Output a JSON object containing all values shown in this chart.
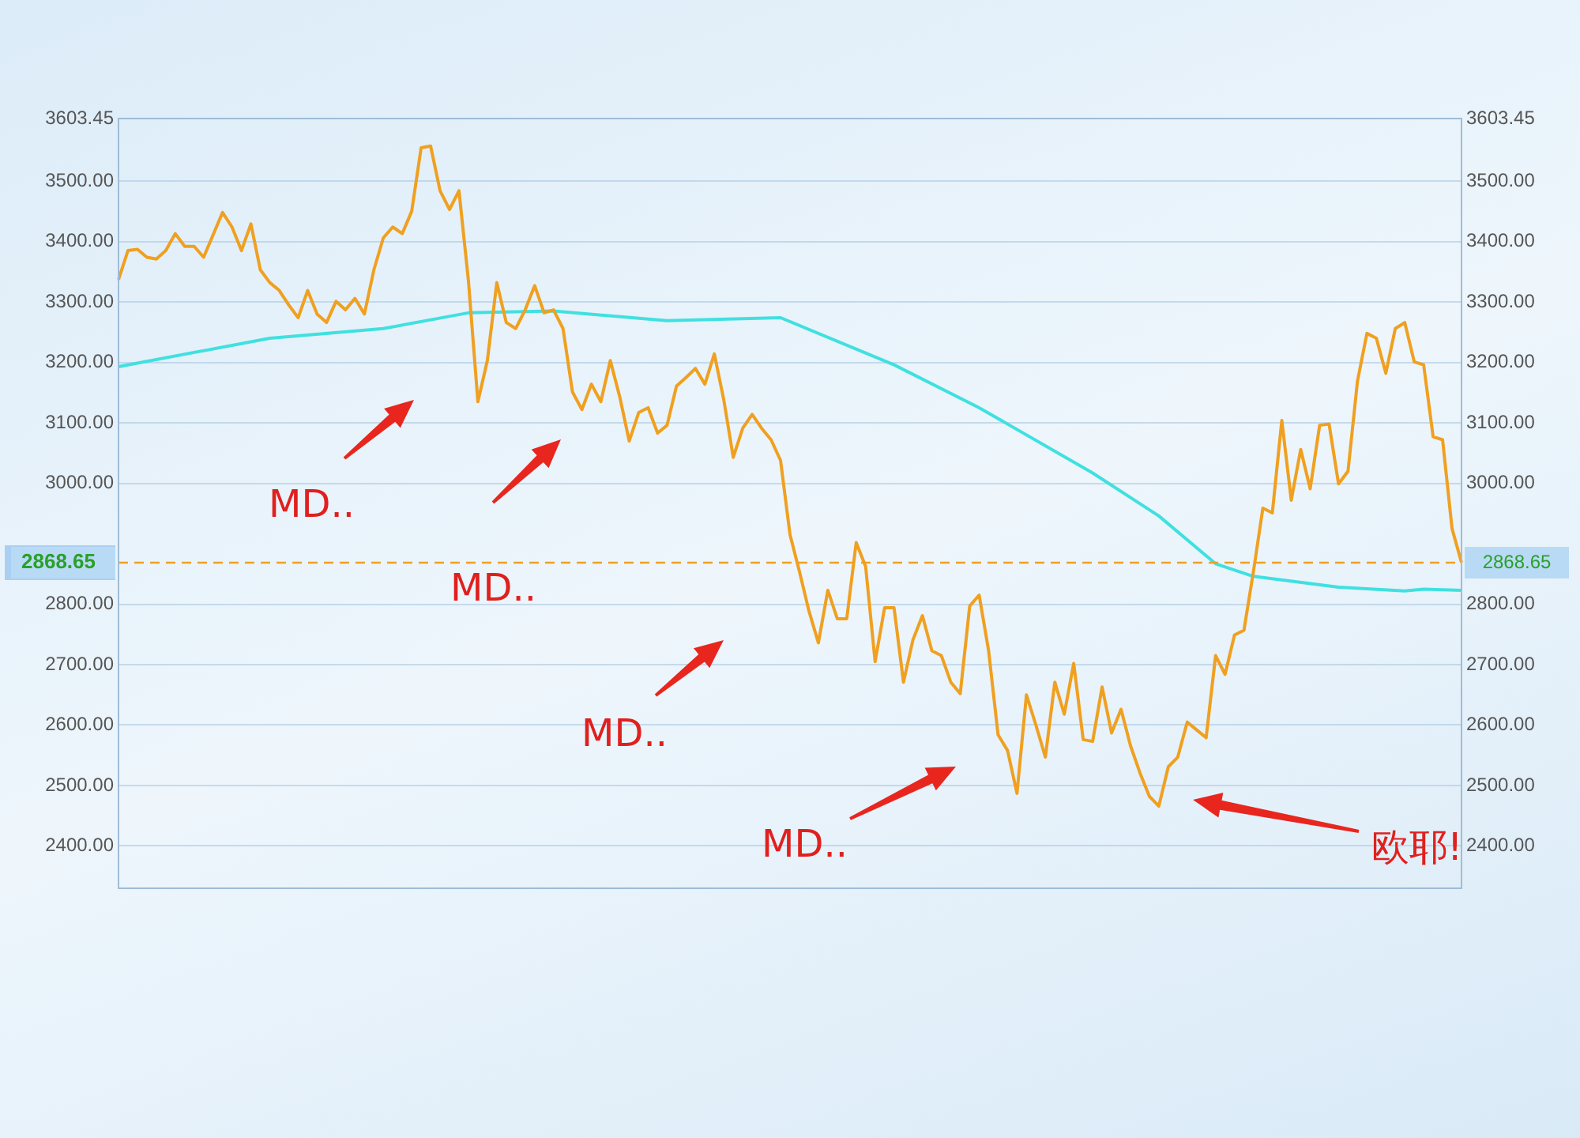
{
  "chart_data": {
    "type": "line",
    "categories": [
      null,
      null,
      null,
      null,
      null,
      null,
      null,
      null,
      null,
      null,
      null,
      null,
      null,
      null,
      null,
      null,
      null,
      null,
      null,
      null,
      null,
      null,
      null,
      null,
      null,
      null,
      null,
      null,
      null,
      null,
      null,
      null,
      null,
      null,
      null,
      null,
      null,
      null,
      null,
      null,
      null,
      null,
      null,
      null,
      null,
      null,
      null,
      null,
      null,
      null,
      null,
      null,
      null,
      null,
      null,
      null,
      null,
      null,
      null,
      null,
      null,
      null,
      null,
      null,
      null,
      null,
      null,
      null,
      null,
      null,
      null,
      null,
      null,
      null,
      null,
      null,
      null,
      null,
      null,
      null,
      null,
      null,
      null,
      null,
      null,
      null,
      null,
      null,
      null,
      null,
      null,
      null,
      null,
      null,
      null,
      null,
      null,
      null,
      null,
      null,
      null,
      null,
      null,
      null,
      null,
      null,
      null,
      null,
      null,
      null,
      null,
      null,
      null,
      null,
      null,
      null,
      null,
      null,
      null,
      null,
      null,
      null,
      null,
      null,
      null,
      null,
      null,
      null,
      null,
      null,
      null,
      null,
      null,
      null,
      null,
      null,
      null,
      null,
      null,
      null,
      null,
      null,
      null
    ],
    "series": [
      {
        "color": "#f0a020",
        "values": [
          3337,
          3385,
          3387,
          3374,
          3371,
          3385,
          3413,
          3392,
          3392,
          3374,
          3411,
          3448,
          3424,
          3385,
          3429,
          3353,
          3332,
          3319,
          3295,
          3274,
          3319,
          3280,
          3266,
          3301,
          3287,
          3306,
          3280,
          3353,
          3406,
          3424,
          3413,
          3450,
          3555,
          3558,
          3484,
          3453,
          3484,
          3335,
          3135,
          3203,
          3332,
          3266,
          3256,
          3287,
          3327,
          3282,
          3287,
          3256,
          3151,
          3122,
          3164,
          3135,
          3203,
          3143,
          3070,
          3117,
          3125,
          3083,
          3096,
          3161,
          3175,
          3190,
          3164,
          3214,
          3138,
          3043,
          3091,
          3114,
          3091,
          3072,
          3038,
          2915,
          2854,
          2789,
          2736,
          2823,
          2776,
          2776,
          2902,
          2862,
          2705,
          2794,
          2794,
          2671,
          2741,
          2781,
          2723,
          2715,
          2671,
          2652,
          2797,
          2815,
          2723,
          2584,
          2558,
          2487,
          2650,
          2600,
          2547,
          2671,
          2618,
          2702,
          2576,
          2573,
          2663,
          2587,
          2626,
          2566,
          2521,
          2482,
          2466,
          2531,
          2547,
          2605,
          2592,
          2579,
          2715,
          2684,
          2749,
          2757,
          2854,
          2959,
          2951,
          3104,
          2972,
          3056,
          2991,
          3096,
          3098,
          2999,
          3020,
          3169,
          3248,
          3240,
          3182,
          3256,
          3266,
          3201,
          3196,
          3077,
          3072,
          2925,
          2869
        ]
      },
      {
        "color": "#40e0e0",
        "values": [
          3193,
          null,
          null,
          null,
          null,
          null,
          null,
          null,
          null,
          null,
          null,
          null,
          null,
          null,
          null,
          null,
          3240,
          null,
          null,
          null,
          null,
          null,
          null,
          null,
          null,
          null,
          null,
          null,
          3256,
          null,
          null,
          null,
          null,
          null,
          null,
          null,
          null,
          3282,
          null,
          null,
          null,
          null,
          null,
          null,
          null,
          null,
          3285,
          null,
          null,
          null,
          null,
          null,
          null,
          null,
          null,
          null,
          null,
          null,
          3269,
          null,
          null,
          null,
          null,
          null,
          null,
          null,
          null,
          null,
          null,
          null,
          3274,
          null,
          null,
          null,
          null,
          null,
          null,
          null,
          null,
          null,
          null,
          null,
          3196,
          null,
          null,
          null,
          null,
          null,
          null,
          null,
          null,
          3125,
          null,
          null,
          null,
          null,
          null,
          null,
          null,
          null,
          null,
          null,
          null,
          3017,
          null,
          null,
          null,
          null,
          null,
          null,
          2946,
          null,
          null,
          null,
          null,
          null,
          2867,
          null,
          null,
          null,
          2846,
          null,
          null,
          null,
          null,
          null,
          null,
          null,
          null,
          2828,
          null,
          null,
          null,
          null,
          null,
          null,
          2822,
          null,
          2825,
          null,
          null,
          null,
          2823
        ]
      }
    ],
    "ylim": [
      2330,
      3603.45
    ],
    "yticks": [
      {
        "value": 2400,
        "label": "2400.00"
      },
      {
        "value": 2500,
        "label": "2500.00"
      },
      {
        "value": 2600,
        "label": "2600.00"
      },
      {
        "value": 2700,
        "label": "2700.00"
      },
      {
        "value": 2800,
        "label": "2800.00"
      },
      {
        "value": 3000,
        "label": "3000.00"
      },
      {
        "value": 3100,
        "label": "3100.00"
      },
      {
        "value": 3200,
        "label": "3200.00"
      },
      {
        "value": 3300,
        "label": "3300.00"
      },
      {
        "value": 3400,
        "label": "3400.00"
      },
      {
        "value": 3500,
        "label": "3500.00"
      },
      3603.45
    ],
    "y2lim": [
      2330,
      3603.45
    ],
    "y2ticks": [
      {
        "value": 2400,
        "label": "2400.00"
      },
      {
        "value": 2500,
        "label": "2500.00"
      },
      {
        "value": 2600,
        "label": "2600.00"
      },
      {
        "value": 2700,
        "label": "2700.00"
      },
      {
        "value": 2800,
        "label": "2800.00"
      },
      {
        "value": 3000,
        "label": "3000.00"
      },
      {
        "value": 3100,
        "label": "3100.00"
      },
      {
        "value": 3200,
        "label": "3200.00"
      },
      {
        "value": 3300,
        "label": "3300.00"
      },
      {
        "value": 3400,
        "label": "3400.00"
      },
      {
        "value": 3500,
        "label": "3500.00"
      },
      3603.45
    ],
    "ref_lines": [
      {
        "axis": "y",
        "value": 2868.65,
        "label": "2868.65",
        "color": "#f0a020",
        "line_style": "dashed"
      }
    ],
    "annotations": [
      "MD..",
      "MD..",
      "MD..",
      "MD..",
      "欧耶!"
    ],
    "tick_labels": "y",
    "grid": "y",
    "legend": false,
    "marker": "none",
    "line_style": "solid"
  }
}
